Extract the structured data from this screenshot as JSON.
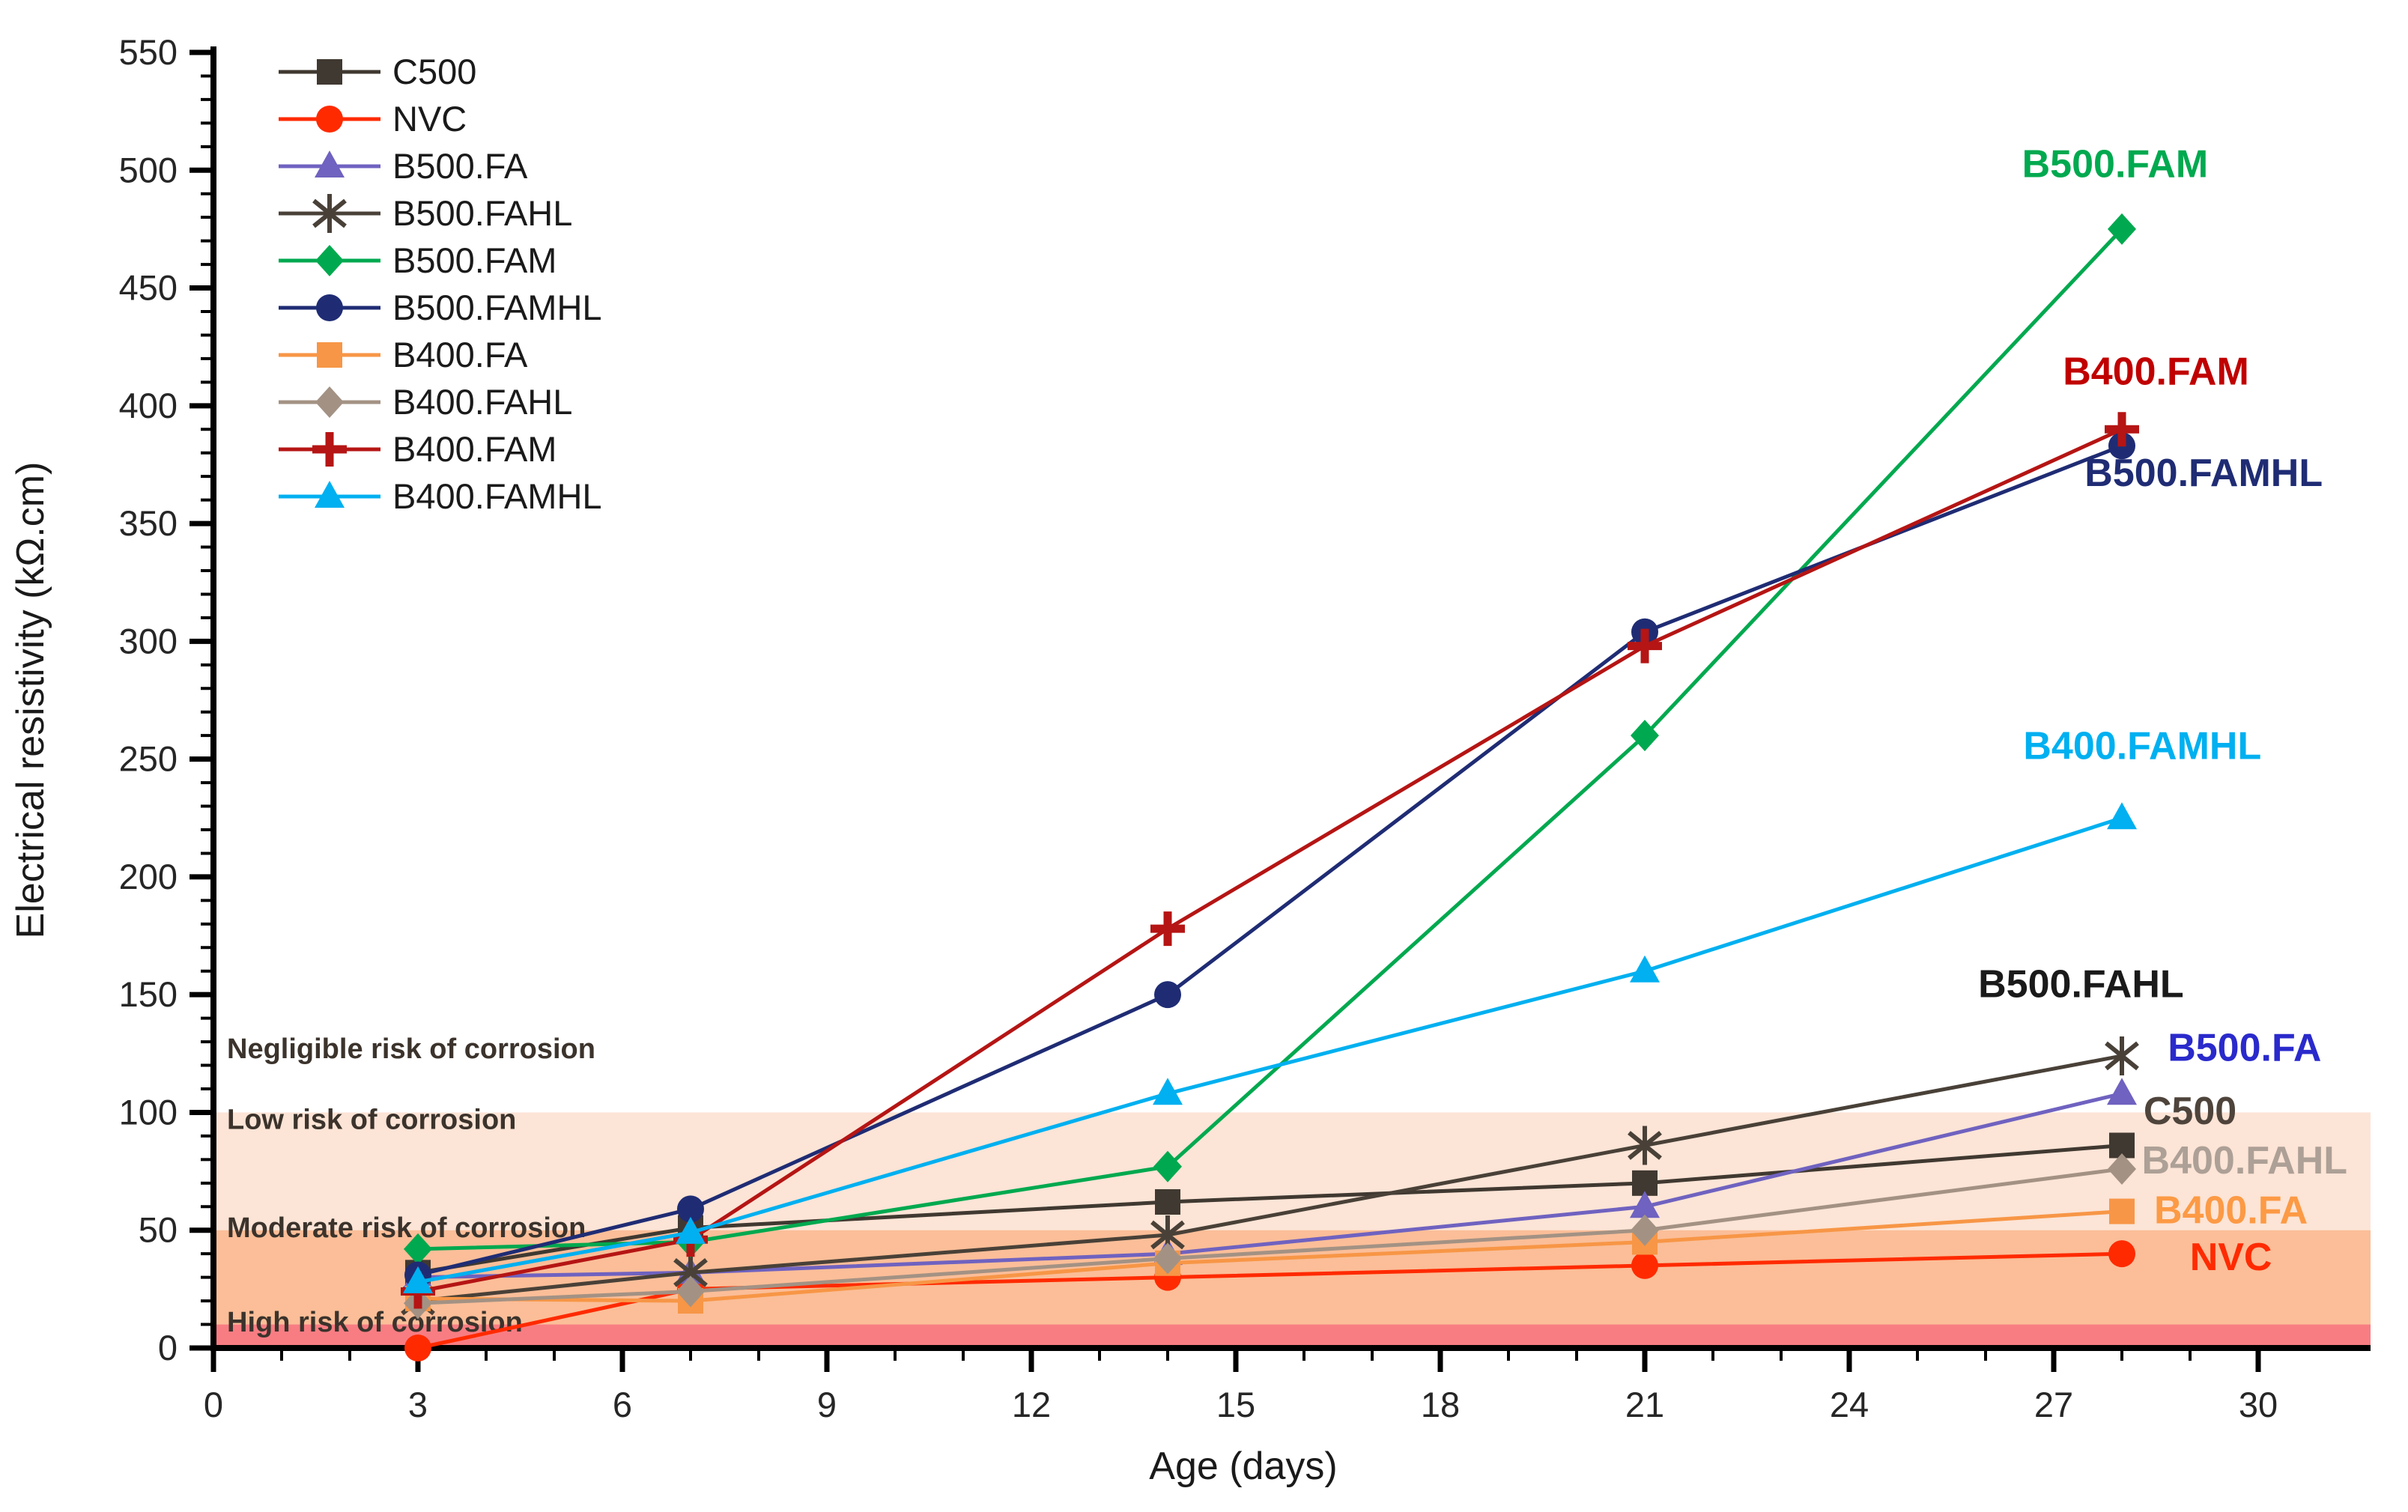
{
  "chart_data": {
    "type": "line",
    "title": "",
    "xlabel": "Age (days)",
    "ylabel": "Electrical resistivity (kΩ.cm)",
    "xlim": [
      0,
      30
    ],
    "ylim": [
      0,
      550
    ],
    "x_tick_major": 3,
    "x_tick_minor": 1,
    "y_tick_major": 50,
    "y_tick_minor": 10,
    "grid": false,
    "legend_position": "top-left",
    "x": [
      3,
      7,
      14,
      21,
      28
    ],
    "series": [
      {
        "name": "C500",
        "color": "#403931",
        "marker": "square",
        "values": [
          32,
          51,
          62,
          70,
          86
        ],
        "label_color": "#4E443B",
        "ann_day": 29.0,
        "ann_val": 95
      },
      {
        "name": "NVC",
        "color": "#FF2A00",
        "marker": "circle",
        "values": [
          0,
          25,
          30,
          35,
          40
        ],
        "label_color": "#FF2A00",
        "ann_day": 29.6,
        "ann_val": 33
      },
      {
        "name": "B500.FA",
        "color": "#6F62C0",
        "marker": "triangle",
        "values": [
          30,
          32,
          40,
          60,
          108
        ],
        "label_color": "#2A2ACC",
        "ann_day": 29.8,
        "ann_val": 122
      },
      {
        "name": "B500.FAHL",
        "color": "#494138",
        "marker": "asterisk",
        "values": [
          20,
          32,
          48,
          86,
          124
        ],
        "label_color": "#1A1A1A",
        "ann_day": 27.4,
        "ann_val": 149
      },
      {
        "name": "B500.FAM",
        "color": "#00A94F",
        "marker": "diamond",
        "values": [
          42,
          45,
          77,
          260,
          475
        ],
        "label_color": "#00A94F",
        "ann_day": 27.9,
        "ann_val": 497
      },
      {
        "name": "B500.FAMHL",
        "color": "#1F2C74",
        "marker": "circle",
        "values": [
          31,
          59,
          150,
          304,
          383
        ],
        "label_color": "#1F2C74",
        "ann_day": 29.2,
        "ann_val": 366
      },
      {
        "name": "B400.FA",
        "color": "#F79646",
        "marker": "square",
        "values": [
          21,
          20,
          36,
          45,
          58
        ],
        "label_color": "#FC9A45",
        "ann_day": 29.6,
        "ann_val": 53
      },
      {
        "name": "B400.FAHL",
        "color": "#A39284",
        "marker": "diamond",
        "values": [
          19,
          24,
          38,
          50,
          76
        ],
        "label_color": "#ADA096",
        "ann_day": 29.8,
        "ann_val": 74
      },
      {
        "name": "B400.FAM",
        "color": "#B51514",
        "marker": "plus",
        "values": [
          24,
          46,
          178,
          298,
          390
        ],
        "label_color": "#C00000",
        "ann_day": 28.5,
        "ann_val": 409
      },
      {
        "name": "B400.FAMHL",
        "color": "#00B0F0",
        "marker": "triangle",
        "values": [
          28,
          49,
          108,
          160,
          225
        ],
        "label_color": "#00B0F0",
        "ann_day": 28.3,
        "ann_val": 250
      }
    ],
    "zones": [
      {
        "label": "Negligible risk of corrosion",
        "from": 100,
        "to": 550,
        "color": "#FFFFFF",
        "label_v": 123
      },
      {
        "label": "Low risk of corrosion",
        "from": 50,
        "to": 100,
        "color": "#FCE4D6",
        "label_v": 93
      },
      {
        "label": "Moderate risk of corrosion",
        "from": 10,
        "to": 50,
        "color": "#FBBE98",
        "label_v": 47
      },
      {
        "label": "High risk of corrosion",
        "from": 0,
        "to": 10,
        "color": "#F87D83",
        "label_v": 7
      }
    ],
    "zone_label_color": "#3B332C",
    "axis_color": "#000000",
    "legend": [
      "C500",
      "NVC",
      "B500.FA",
      "B500.FAHL",
      "B500.FAM",
      "B500.FAMHL",
      "B400.FA",
      "B400.FAHL",
      "B400.FAM",
      "B400.FAMHL"
    ]
  }
}
